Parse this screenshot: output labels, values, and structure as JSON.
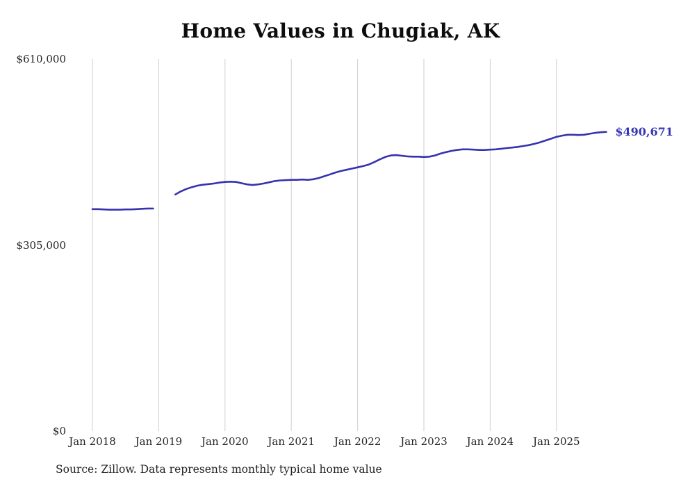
{
  "chart_data": {
    "type": "line",
    "title": "Home Values in Chugiak, AK",
    "source_note": "Source: Zillow. Data represents monthly typical home value",
    "end_label": "$490,671",
    "latest_value": 490671,
    "line_color": "#3533ae",
    "value_label_color": "#3535b5",
    "grid_color": "#cfcfcf",
    "ylim": [
      0,
      610000
    ],
    "grid": "vertical-only",
    "legend": "none",
    "y_ticks": [
      {
        "value": 610000,
        "label": "$610,000"
      },
      {
        "value": 305000,
        "label": "$305,000"
      },
      {
        "value": 0,
        "label": "$0"
      }
    ],
    "x_ticks": [
      {
        "date": "2018-01",
        "label": "Jan 2018"
      },
      {
        "date": "2019-01",
        "label": "Jan 2019"
      },
      {
        "date": "2020-01",
        "label": "Jan 2020"
      },
      {
        "date": "2021-01",
        "label": "Jan 2021"
      },
      {
        "date": "2022-01",
        "label": "Jan 2022"
      },
      {
        "date": "2023-01",
        "label": "Jan 2023"
      },
      {
        "date": "2024-01",
        "label": "Jan 2024"
      },
      {
        "date": "2025-01",
        "label": "Jan 2025"
      }
    ],
    "series": [
      {
        "name": "Typical home value",
        "start": "2018-01",
        "frequency": "monthly",
        "values": [
          364000,
          364000,
          363500,
          363000,
          363000,
          363000,
          363500,
          363500,
          364000,
          364500,
          365000,
          365000,
          null,
          null,
          null,
          388000,
          393000,
          397000,
          400000,
          402500,
          404000,
          405000,
          406000,
          407500,
          408500,
          409000,
          408500,
          406500,
          404500,
          403500,
          404500,
          406000,
          408000,
          410000,
          411000,
          411500,
          412000,
          412000,
          412500,
          412000,
          413000,
          415000,
          418000,
          421000,
          424000,
          426500,
          428500,
          430500,
          432500,
          434500,
          437000,
          441000,
          445500,
          449500,
          452000,
          452500,
          451500,
          450500,
          450000,
          450000,
          449500,
          450000,
          452000,
          455000,
          457500,
          459500,
          461000,
          462000,
          462000,
          461500,
          461000,
          461000,
          461500,
          462000,
          463000,
          464000,
          465000,
          466000,
          467500,
          469000,
          471000,
          473500,
          476500,
          479500,
          482500,
          484500,
          486000,
          486000,
          485500,
          486000,
          487500,
          489000,
          490000,
          490671
        ]
      }
    ]
  }
}
